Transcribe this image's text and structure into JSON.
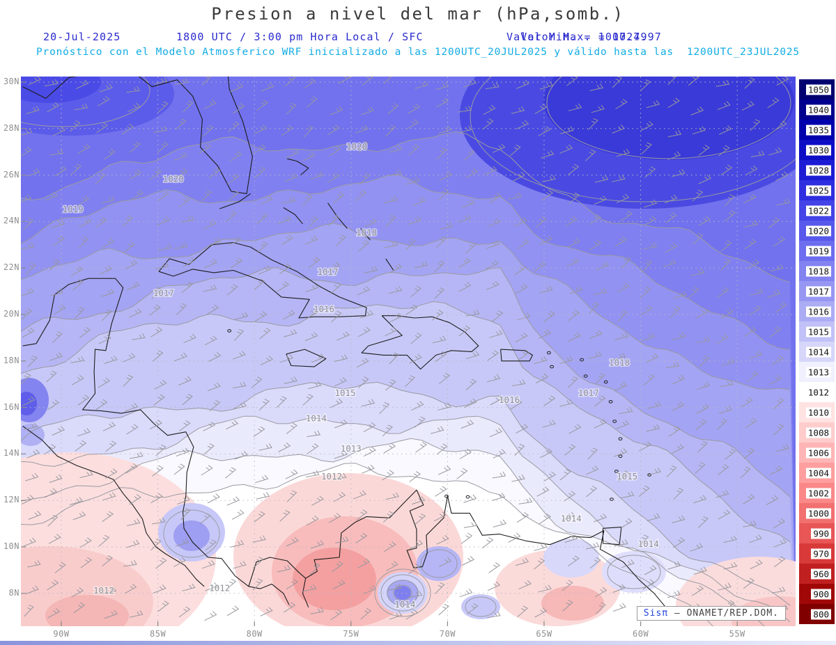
{
  "header": {
    "title": "Presion a nivel del mar (hPa,somb.)",
    "date": "20-Jul-2025",
    "time": "1800 UTC / 3:00 pm Hora Local / SFC",
    "min_label": "Valor Min. = 1007.79",
    "max_label": "Valor Max. = 1024.97",
    "model_info": "Pronóstico con el Modelo Atmosferico WRF inicializado a las 1200UTC_20JUL2025 y válido hasta las  1200UTC_23JUL2025"
  },
  "credit": {
    "system": "Sisπ",
    "org": " – ONAMET/REP.DOM."
  },
  "chart_data": {
    "type": "heatmap",
    "title": "Presion a nivel del mar (hPa,somb.)",
    "shaded_field": "sea level pressure",
    "units": "hPa",
    "value_min": 1007.79,
    "value_max": 1024.97,
    "model": "WRF",
    "run": "1200UTC_20JUL2025",
    "valid_until": "1200UTC_23JUL2025",
    "valid_date": "20-Jul-2025",
    "valid_time": "1800 UTC / 3:00 pm Hora Local / SFC",
    "lat_ticks": [
      "30N",
      "28N",
      "26N",
      "24N",
      "22N",
      "20N",
      "18N",
      "16N",
      "14N",
      "12N",
      "10N",
      "8N"
    ],
    "lon_ticks": [
      "90W",
      "85W",
      "80W",
      "75W",
      "70W",
      "65W",
      "60W",
      "55W"
    ],
    "colorbar_levels": [
      1050,
      1040,
      1035,
      1030,
      1028,
      1025,
      1022,
      1020,
      1019,
      1018,
      1017,
      1016,
      1015,
      1014,
      1013,
      1012,
      1010,
      1008,
      1006,
      1004,
      1002,
      1000,
      990,
      970,
      960,
      900,
      800
    ],
    "colorbar_colors": [
      "#000070",
      "#00008e",
      "#0000ac",
      "#0d0dc6",
      "#1c1cd4",
      "#2e2ee0",
      "#4343e8",
      "#5858ec",
      "#6d6def",
      "#8282f1",
      "#9797f3",
      "#acacf5",
      "#c1c1f8",
      "#d6d6fa",
      "#f0f0fe",
      "#ffffff",
      "#ffe2e2",
      "#ffcccc",
      "#ffb5b5",
      "#ff9e9e",
      "#fb8888",
      "#f27070",
      "#e85656",
      "#d83a3a",
      "#c02020",
      "#a00808",
      "#800000"
    ],
    "contour_labels": [
      {
        "value": 1020,
        "lon": -84.2,
        "lat": 25.7
      },
      {
        "value": 1020,
        "lon": -74.7,
        "lat": 27.1
      },
      {
        "value": 1019,
        "lon": -89.4,
        "lat": 24.4
      },
      {
        "value": 1018,
        "lon": -74.2,
        "lat": 23.4
      },
      {
        "value": 1018,
        "lon": -61.1,
        "lat": 17.8
      },
      {
        "value": 1017,
        "lon": -84.7,
        "lat": 20.8
      },
      {
        "value": 1017,
        "lon": -76.2,
        "lat": 21.7
      },
      {
        "value": 1017,
        "lon": -62.7,
        "lat": 16.5
      },
      {
        "value": 1016,
        "lon": -76.4,
        "lat": 20.1
      },
      {
        "value": 1016,
        "lon": -66.8,
        "lat": 16.2
      },
      {
        "value": 1015,
        "lon": -75.3,
        "lat": 16.5
      },
      {
        "value": 1015,
        "lon": -60.7,
        "lat": 12.9
      },
      {
        "value": 1014,
        "lon": -76.8,
        "lat": 15.4
      },
      {
        "value": 1014,
        "lon": -63.6,
        "lat": 11.1
      },
      {
        "value": 1014,
        "lon": -59.6,
        "lat": 10.0
      },
      {
        "value": 1013,
        "lon": -75.0,
        "lat": 14.1
      },
      {
        "value": 1012,
        "lon": -76.0,
        "lat": 12.9
      },
      {
        "value": 1012,
        "lon": -87.8,
        "lat": 8.0
      },
      {
        "value": 1012,
        "lon": -81.8,
        "lat": 8.1
      },
      {
        "value": 1014,
        "lon": -72.2,
        "lat": 7.4
      }
    ]
  }
}
